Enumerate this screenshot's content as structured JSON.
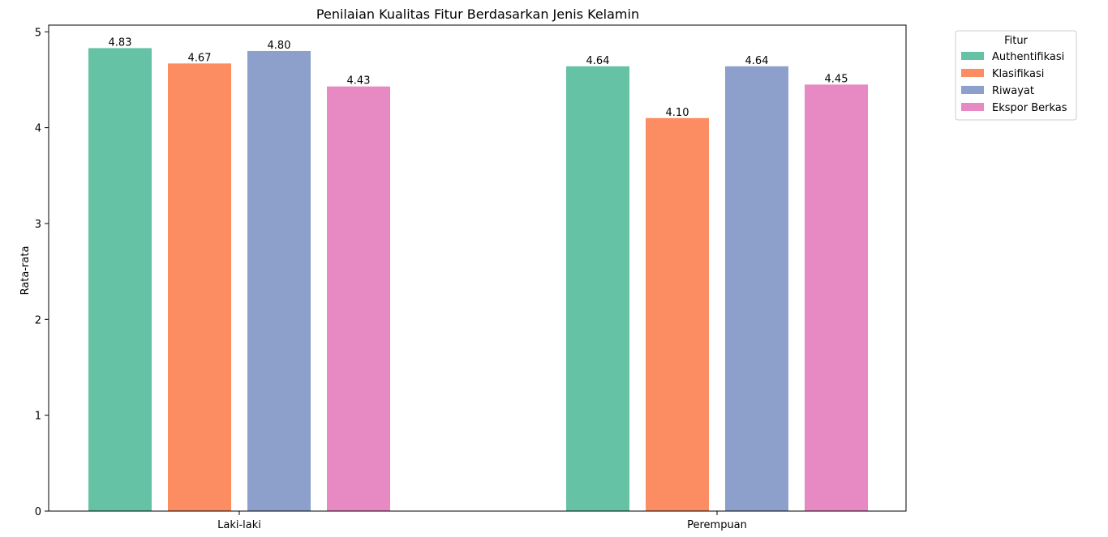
{
  "chart_data": {
    "type": "bar",
    "title": "Penilaian Kualitas Fitur Berdasarkan Jenis Kelamin",
    "xlabel": "",
    "ylabel": "Rata-rata",
    "categories": [
      "Laki-laki",
      "Perempuan"
    ],
    "ylim": [
      0,
      5.07
    ],
    "yticks": [
      0,
      1,
      2,
      3,
      4,
      5
    ],
    "grid": false,
    "legend": {
      "title": "Fitur",
      "placement": "outside top-right"
    },
    "series": [
      {
        "name": "Authentifikasi",
        "color": "#66c2a5",
        "values": [
          4.83,
          4.64
        ],
        "labels": [
          "4.83",
          "4.64"
        ]
      },
      {
        "name": "Klasifikasi",
        "color": "#fc8d62",
        "values": [
          4.67,
          4.1
        ],
        "labels": [
          "4.67",
          "4.10"
        ]
      },
      {
        "name": "Riwayat",
        "color": "#8da0cb",
        "values": [
          4.8,
          4.64
        ],
        "labels": [
          "4.80",
          "4.64"
        ]
      },
      {
        "name": "Ekspor Berkas",
        "color": "#e78ac3",
        "values": [
          4.43,
          4.45
        ],
        "labels": [
          "4.43",
          "4.45"
        ]
      }
    ]
  }
}
